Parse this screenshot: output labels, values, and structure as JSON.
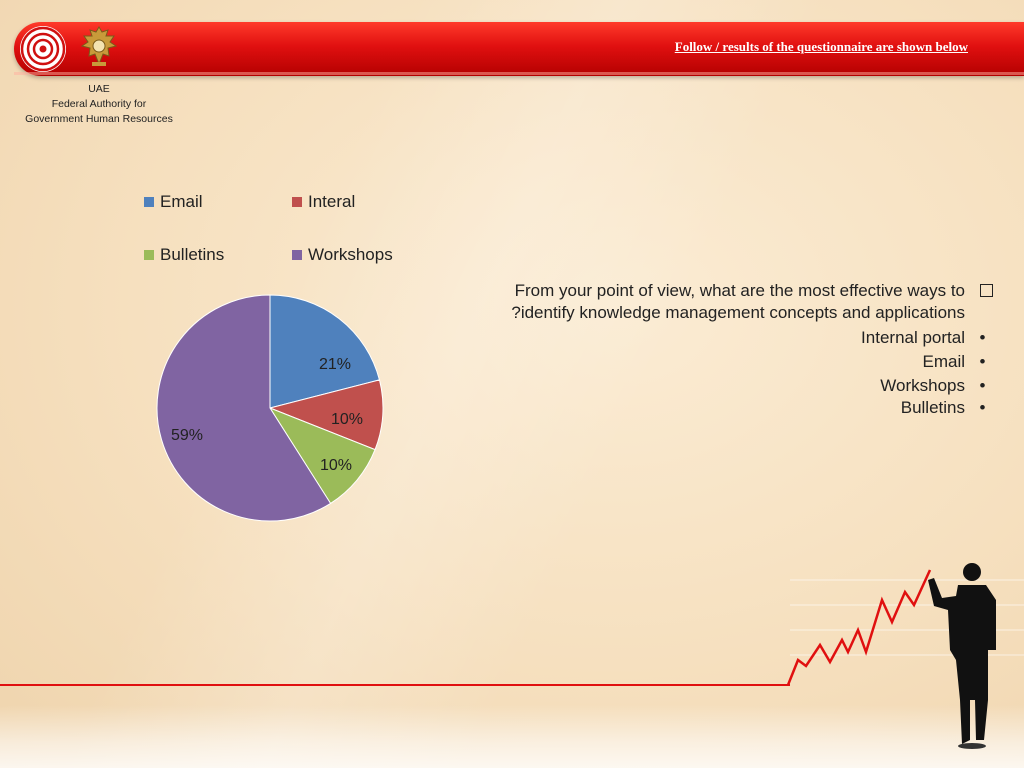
{
  "header": {
    "title": "Follow / results of the questionnaire are shown below"
  },
  "org": {
    "line1": "UAE",
    "line2": "Federal Authority for",
    "line3": "Government Human Resources"
  },
  "colors": {
    "header_red": "#e01010",
    "Email": "#4f81bd",
    "Interal": "#c0504d",
    "Bulletins": "#9bbb59",
    "Workshops": "#8064a2"
  },
  "chart_data": {
    "type": "pie",
    "legend_placement": "top",
    "categories": [
      "Email",
      "Interal",
      "Bulletins",
      "Workshops"
    ],
    "values": [
      21,
      10,
      10,
      59
    ],
    "labels": [
      "21%",
      "10%",
      "10%",
      "59%"
    ],
    "title": ""
  },
  "question": {
    "text_line1": "From your point of view, what are the most effective ways to",
    "text_line2": "?identify knowledge management concepts and applications",
    "icon": "checkbox-icon"
  },
  "bullets": [
    "Internal portal",
    "Email",
    "Workshops",
    "Bulletins"
  ]
}
